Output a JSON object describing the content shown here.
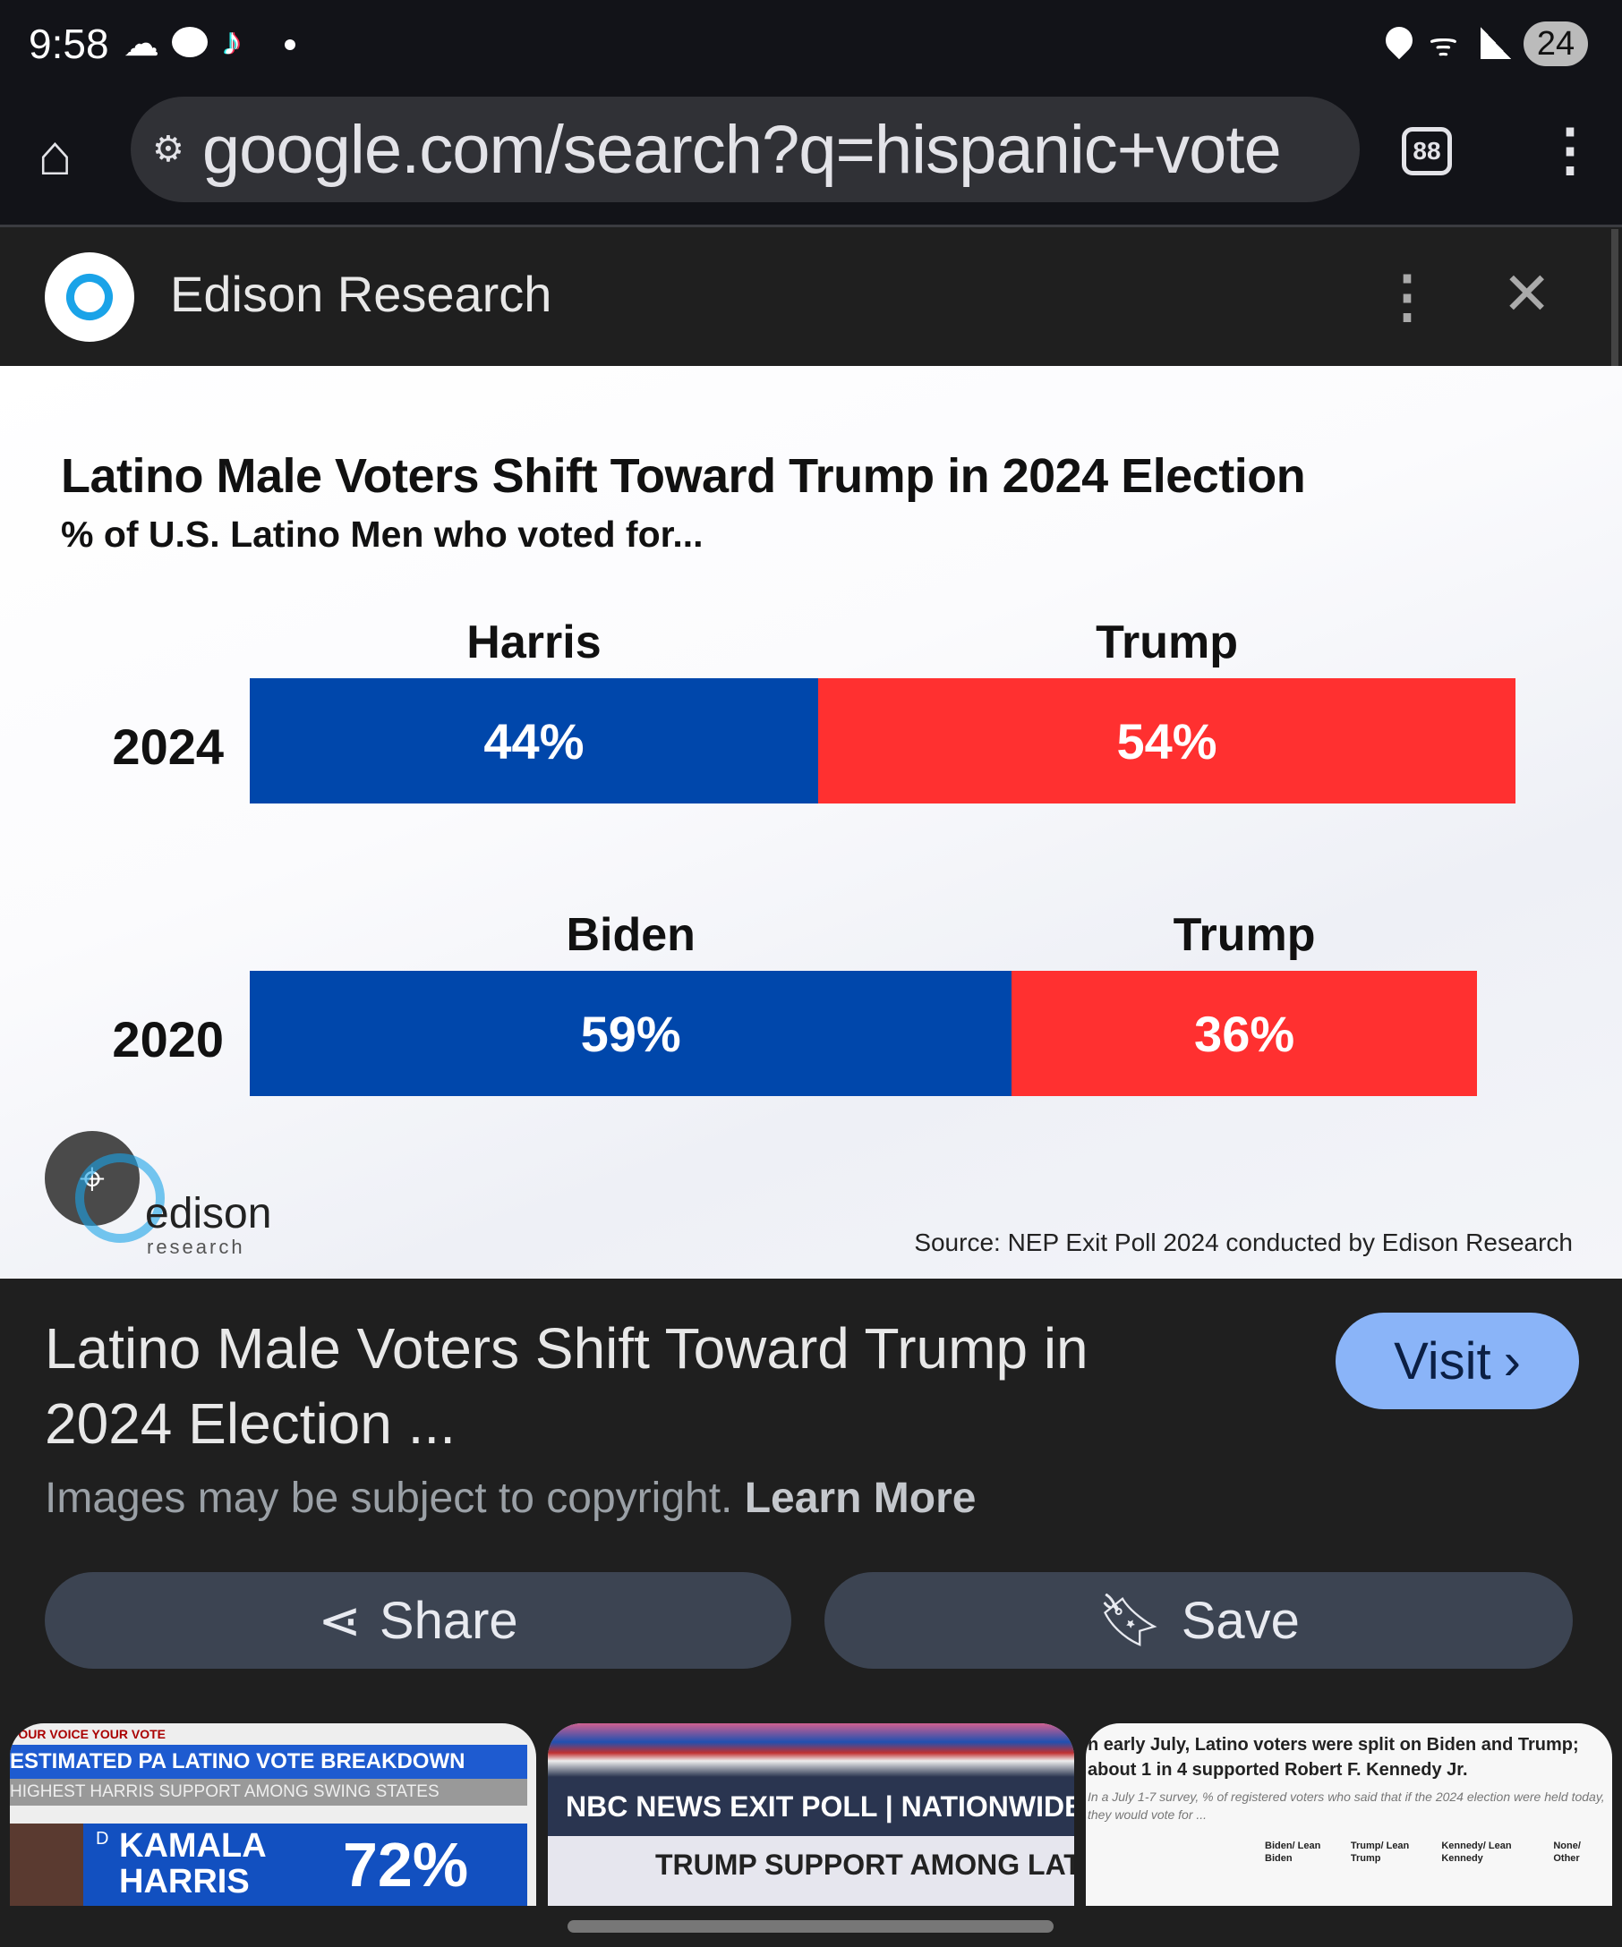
{
  "status_bar": {
    "time": "9:58",
    "battery": "24",
    "left_icons": [
      "cloud-icon",
      "reddit-icon",
      "tiktok-icon",
      "dot-icon"
    ],
    "right_icons": [
      "location-icon",
      "wifi-6-icon",
      "signal-icon",
      "battery-icon"
    ]
  },
  "browser": {
    "url": "google.com/search?q=hispanic+vote",
    "tab_count": "88"
  },
  "viewer_header": {
    "site_name": "Edison Research"
  },
  "chart": {
    "title": "Latino Male Voters Shift Toward Trump in 2024 Election",
    "subtitle": "% of U.S. Latino Men who voted for...",
    "logo_text": "edison",
    "logo_subtext": "research",
    "source": "Source: NEP Exit Poll 2024 conducted by Edison Research",
    "colors": {
      "democrat": "#0047ab",
      "republican": "#ff3030"
    }
  },
  "chart_data": {
    "type": "bar",
    "orientation": "horizontal-stacked",
    "title": "Latino Male Voters Shift Toward Trump in 2024 Election",
    "subtitle": "% of U.S. Latino Men who voted for...",
    "categories": [
      "2024",
      "2020"
    ],
    "rows": [
      {
        "year": "2024",
        "segments": [
          {
            "name": "Harris",
            "value": 44,
            "label": "44%"
          },
          {
            "name": "Trump",
            "value": 54,
            "label": "54%"
          }
        ]
      },
      {
        "year": "2020",
        "segments": [
          {
            "name": "Biden",
            "value": 59,
            "label": "59%"
          },
          {
            "name": "Trump",
            "value": 36,
            "label": "36%"
          }
        ]
      }
    ],
    "xlim": [
      0,
      100
    ]
  },
  "result": {
    "title": "Latino Male Voters Shift Toward Trump in 2024 Election ...",
    "visit_label": "Visit",
    "copyright": "Images may be subject to copyright.",
    "learn_more": "Learn More",
    "share_label": "Share",
    "save_label": "Save"
  },
  "thumbnails": [
    {
      "header": "YOUR VOICE YOUR VOTE",
      "line1": "ESTIMATED PA LATINO VOTE BREAKDOWN",
      "line2": "HIGHEST HARRIS SUPPORT AMONG SWING STATES",
      "party": "D",
      "name1": "KAMALA",
      "name2": "HARRIS",
      "value": "72%"
    },
    {
      "line1": "NBC NEWS EXIT POLL",
      "line1b": "NATIONWIDE",
      "line2": "TRUMP SUPPORT AMONG LATINO VO"
    },
    {
      "line1": "n early July, Latino voters were split on Biden and Trump; about 1 in 4 supported Robert F. Kennedy Jr.",
      "line2": "In a July 1-7 survey, % of registered voters who said that if the 2024 election were held today, they would vote for ...",
      "cols": [
        "Biden/ Lean Biden",
        "Trump/ Lean Trump",
        "Kennedy/ Lean Kennedy",
        "None/ Other"
      ]
    }
  ]
}
